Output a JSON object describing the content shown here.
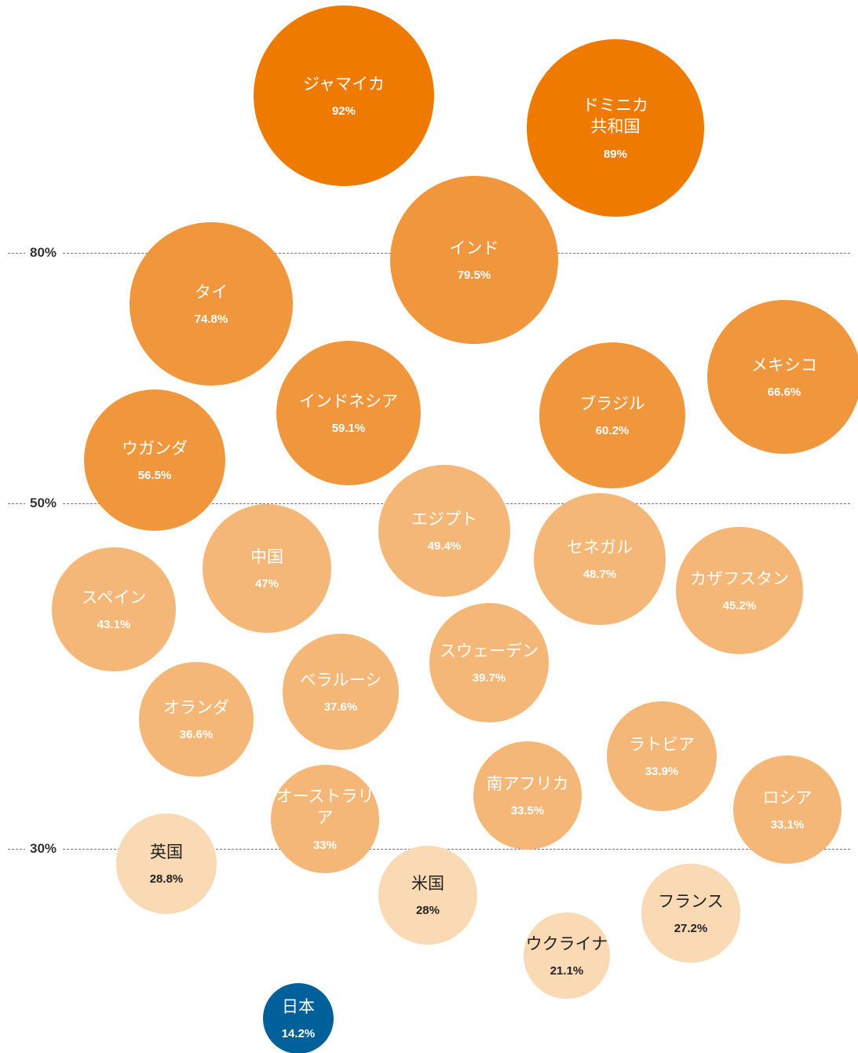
{
  "chart_data": {
    "type": "bubble",
    "categories": [
      "ジャマイカ",
      "ドミニカ\n共和国",
      "インド",
      "タイ",
      "メキシコ",
      "インドネシア",
      "ブラジル",
      "ウガンダ",
      "エジプト",
      "セネガル",
      "中国",
      "カザフスタン",
      "スペイン",
      "スウェーデン",
      "ベラルーシ",
      "オランダ",
      "ラトビア",
      "南アフリカ",
      "ロシア",
      "オーストラリア",
      "英国",
      "米国",
      "フランス",
      "ウクライナ",
      "日本"
    ],
    "values": [
      92,
      89,
      79.5,
      74.8,
      66.6,
      59.1,
      60.2,
      56.5,
      49.4,
      48.7,
      47,
      45.2,
      43.1,
      39.7,
      37.6,
      36.6,
      33.9,
      33.5,
      33.1,
      33,
      28.8,
      28,
      27.2,
      21.1,
      14.2
    ],
    "value_labels": [
      "92%",
      "89%",
      "79.5%",
      "74.8%",
      "66.6%",
      "59.1%",
      "60.2%",
      "56.5%",
      "49.4%",
      "48.7%",
      "47%",
      "45.2%",
      "43.1%",
      "39.7%",
      "37.6%",
      "36.6%",
      "33.9%",
      "33.5%",
      "33.1%",
      "33%",
      "28.8%",
      "28%",
      "27.2%",
      "21.1%",
      "14.2%"
    ],
    "colors": [
      "#ee7a00",
      "#ee7a00",
      "#f0963c",
      "#f0963c",
      "#f0963c",
      "#f0963c",
      "#f0963c",
      "#f0963c",
      "#f5b777",
      "#f5b777",
      "#f5b777",
      "#f5b777",
      "#f5b777",
      "#f5b777",
      "#f5b777",
      "#f5b777",
      "#f5b777",
      "#f5b777",
      "#f5b777",
      "#f5b777",
      "#fad9b5",
      "#fad9b5",
      "#fad9b5",
      "#fad9b5",
      "#00609a"
    ],
    "yticks": [
      {
        "value": 80,
        "label": "80%"
      },
      {
        "value": 50,
        "label": "50%"
      },
      {
        "value": 30,
        "label": "30%"
      }
    ]
  }
}
